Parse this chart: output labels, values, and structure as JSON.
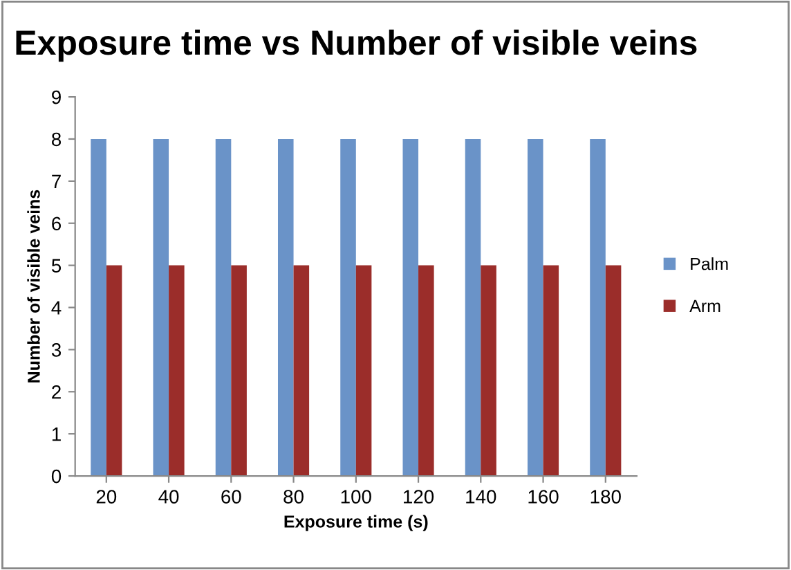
{
  "chart_data": {
    "type": "bar",
    "title": "Exposure time vs Number of visible veins",
    "xlabel": "Exposure time (s)",
    "ylabel": "Number of visible veins",
    "categories": [
      "20",
      "40",
      "60",
      "80",
      "100",
      "120",
      "140",
      "160",
      "180"
    ],
    "series": [
      {
        "name": "Palm",
        "color": "#6a93c8",
        "values": [
          8,
          8,
          8,
          8,
          8,
          8,
          8,
          8,
          8
        ]
      },
      {
        "name": "Arm",
        "color": "#9b2d2a",
        "values": [
          5,
          5,
          5,
          5,
          5,
          5,
          5,
          5,
          5
        ]
      }
    ],
    "ylim": [
      0,
      9
    ],
    "yticks": [
      0,
      1,
      2,
      3,
      4,
      5,
      6,
      7,
      8,
      9
    ],
    "grid": false,
    "legend": "right"
  }
}
